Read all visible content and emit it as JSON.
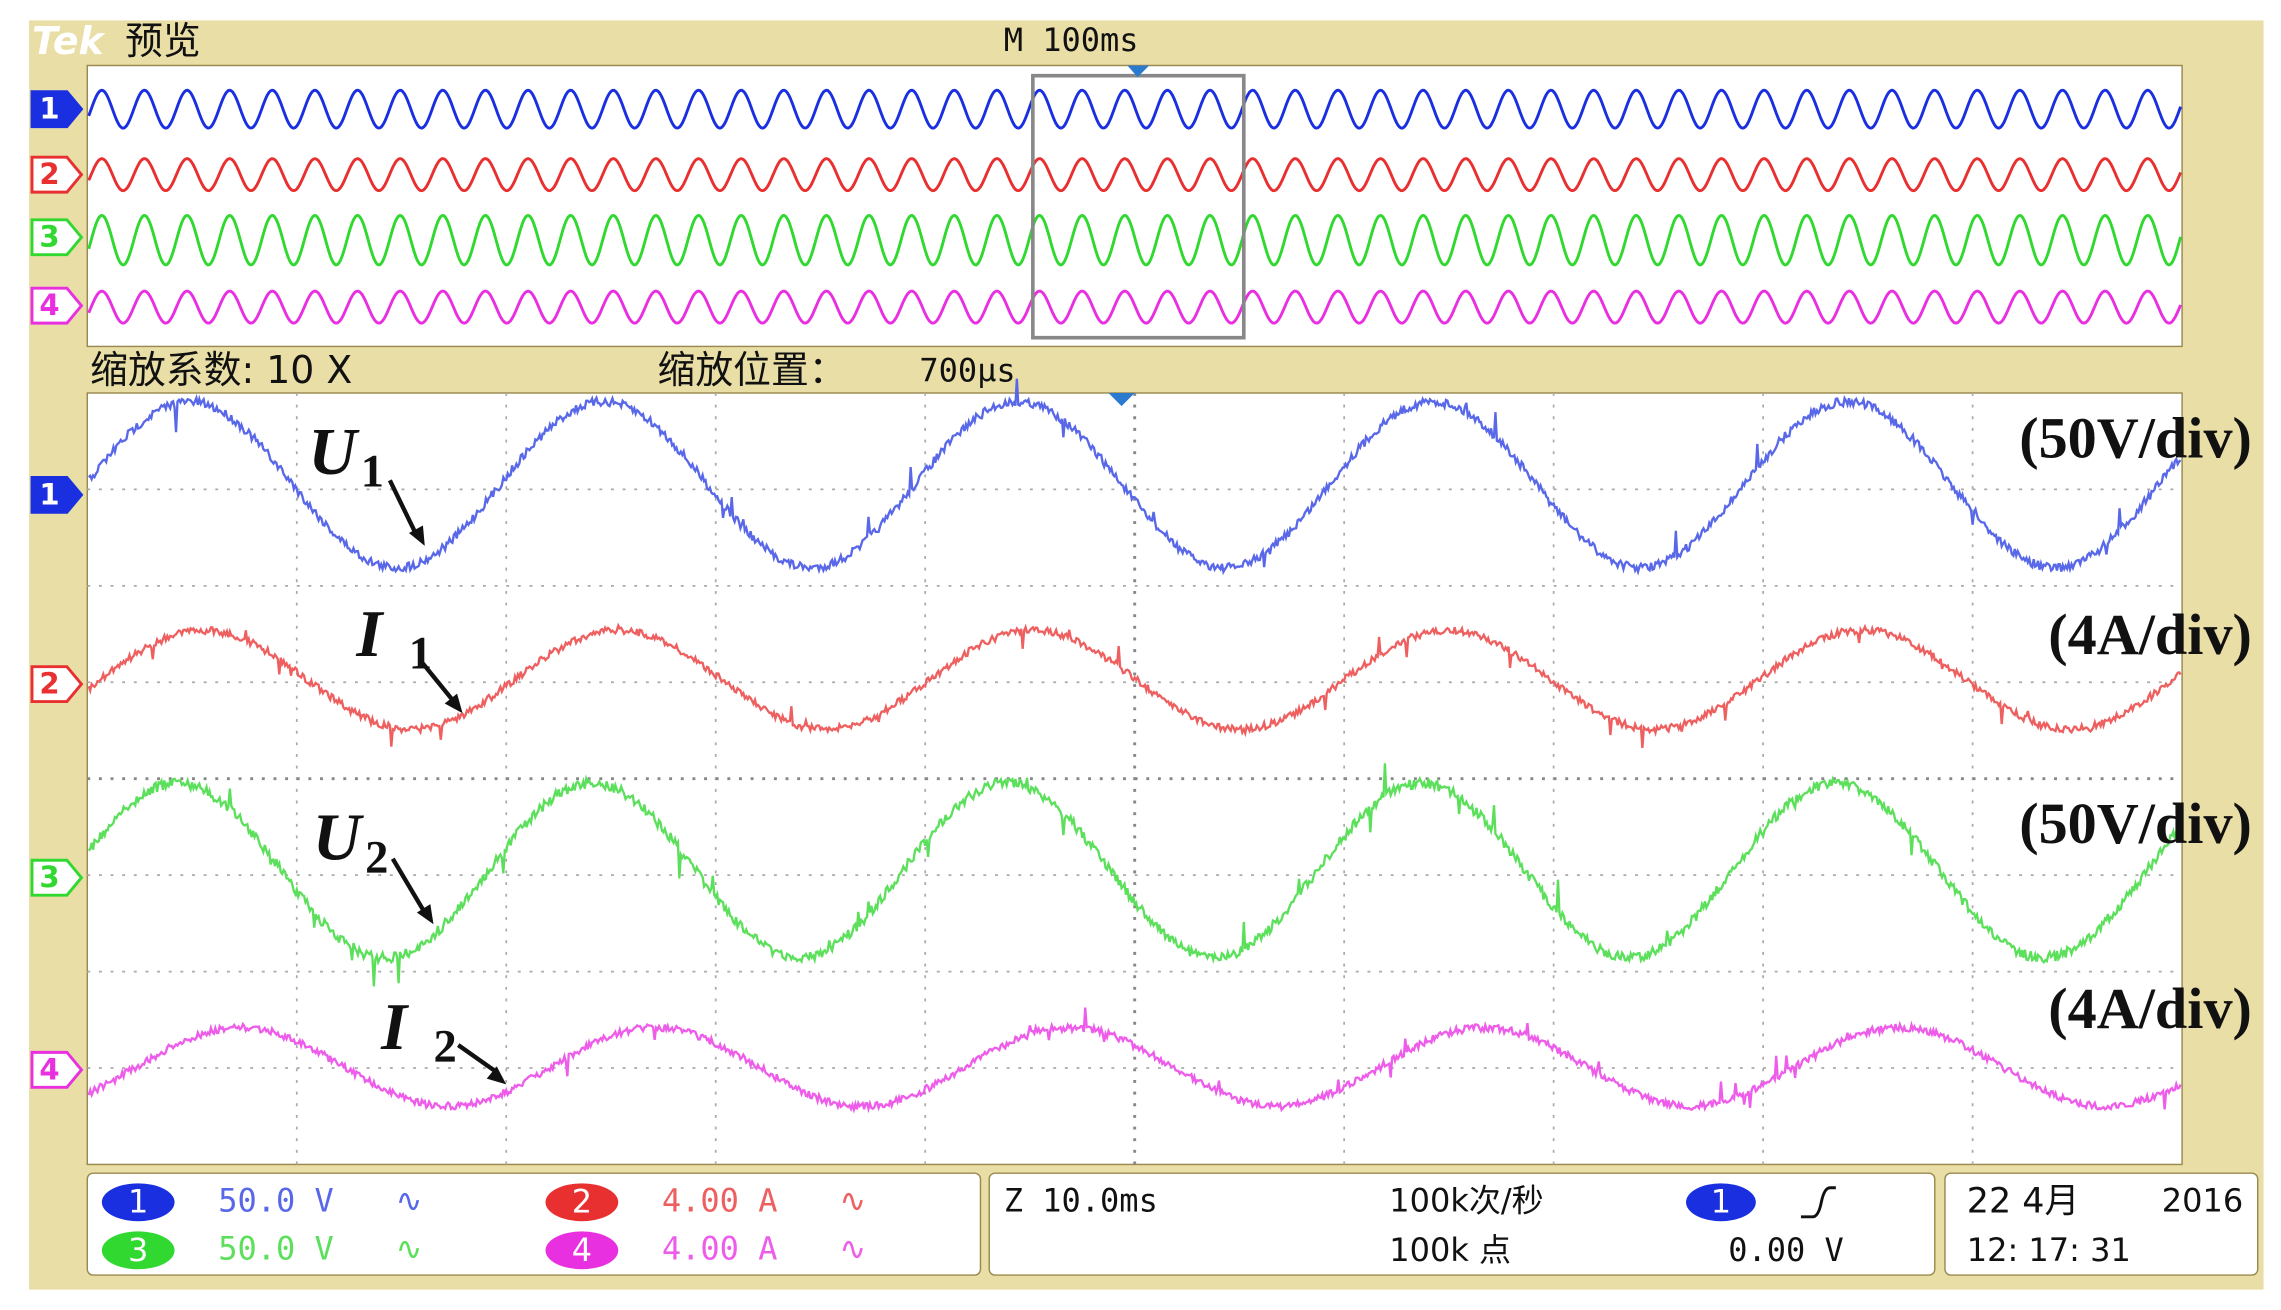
{
  "header": {
    "brand": "Tek",
    "mode": "预览",
    "timebase": "M 100ms"
  },
  "channels": [
    {
      "label": "1",
      "color": "#1a2fe0"
    },
    {
      "label": "2",
      "color": "#e83030"
    },
    {
      "label": "3",
      "color": "#30d830"
    },
    {
      "label": "4",
      "color": "#e830e0"
    }
  ],
  "zoom": {
    "factor": "缩放系数: 10 X",
    "position_label": "缩放位置：",
    "position": "700µs"
  },
  "annotations": [
    {
      "symbol": "U",
      "subscript": "1",
      "scale": "(50V/div)"
    },
    {
      "symbol": "I",
      "subscript": "1",
      "scale": "(4A/div)"
    },
    {
      "symbol": "U",
      "subscript": "2",
      "scale": "(50V/div)"
    },
    {
      "symbol": "I",
      "subscript": "2",
      "scale": "(4A/div)"
    }
  ],
  "status": {
    "channel_settings": [
      {
        "scale": "50.0 V",
        "coupling": "∿"
      },
      {
        "scale": "4.00 A",
        "coupling": "∿"
      },
      {
        "scale": "50.0 V",
        "coupling": "∿"
      },
      {
        "scale": "4.00 A",
        "coupling": "∿"
      }
    ],
    "zoom_timebase": "Z 10.0ms",
    "sample_rate": "100k次/秒",
    "record_length": "100k 点",
    "trigger_source": "1",
    "trigger_level": "0.00 V",
    "date": "22 4月",
    "year": "2016",
    "time": "12: 17: 31"
  }
}
